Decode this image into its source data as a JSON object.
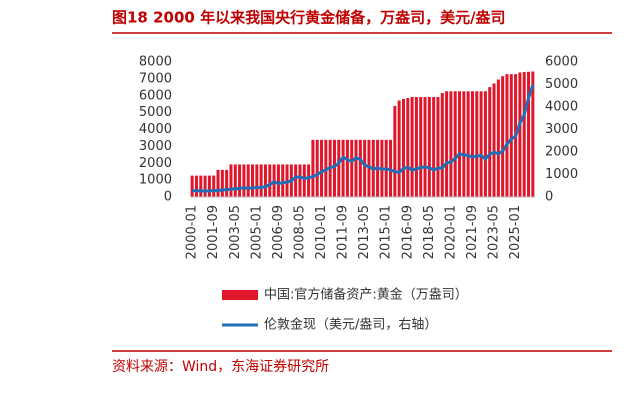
{
  "chart_data": {
    "type": "bar",
    "title": "图18  2000 年以来我国央行黄金储备，万盎司，美元/盎司",
    "source": "资料来源：Wind，东海证券研究所",
    "categories": [
      "2000-01",
      null,
      null,
      null,
      null,
      "2001-09",
      null,
      null,
      null,
      null,
      "2003-05",
      null,
      null,
      null,
      null,
      "2005-01",
      null,
      null,
      null,
      null,
      "2006-09",
      null,
      null,
      null,
      null,
      "2008-05",
      null,
      null,
      null,
      null,
      "2010-01",
      null,
      null,
      null,
      null,
      "2011-09",
      null,
      null,
      null,
      null,
      "2013-05",
      null,
      null,
      null,
      null,
      "2015-01",
      null,
      null,
      null,
      null,
      "2016-09",
      null,
      null,
      null,
      null,
      "2018-05",
      null,
      null,
      null,
      null,
      "2020-01",
      null,
      null,
      null,
      null,
      "2021-09",
      null,
      null,
      null,
      null,
      "2023-05",
      null,
      null,
      null,
      null,
      "2025-01",
      null,
      null,
      null,
      null
    ],
    "series": [
      {
        "name": "中国:官方储备资产:黄金（万盎司）",
        "type": "bar",
        "color": "#e0162b",
        "values": [
          1267,
          1267,
          1267,
          1267,
          1267,
          1267,
          1608,
          1608,
          1608,
          1929,
          1929,
          1929,
          1929,
          1929,
          1929,
          1929,
          1929,
          1929,
          1929,
          1929,
          1929,
          1929,
          1929,
          1929,
          1929,
          1929,
          1929,
          1929,
          3389,
          3389,
          3389,
          3389,
          3389,
          3389,
          3389,
          3389,
          3389,
          3389,
          3389,
          3389,
          3389,
          3389,
          3389,
          3389,
          3389,
          3389,
          3389,
          5395,
          5718,
          5814,
          5862,
          5924,
          5924,
          5924,
          5924,
          5924,
          5924,
          5924,
          6161,
          6264,
          6264,
          6264,
          6264,
          6264,
          6264,
          6264,
          6264,
          6264,
          6264,
          6512,
          6727,
          6962,
          7158,
          7280,
          7280,
          7280,
          7383,
          7406,
          7419,
          7438
        ]
      },
      {
        "name": "伦敦金现（美元/盎司，右轴）",
        "type": "line",
        "axis": "y2",
        "color": "#1f6fb8",
        "values": [
          285,
          275,
          273,
          266,
          272,
          283,
          282,
          315,
          320,
          356,
          355,
          378,
          414,
          385,
          404,
          425,
          430,
          456,
          549,
          676,
          598,
          631,
          667,
          712,
          889,
          889,
          829,
          858,
          902,
          996,
          1118,
          1205,
          1308,
          1356,
          1512,
          1772,
          1656,
          1586,
          1744,
          1670,
          1414,
          1349,
          1244,
          1288,
          1239,
          1251,
          1199,
          1125,
          1097,
          1260,
          1326,
          1192,
          1246,
          1315,
          1331,
          1303,
          1198,
          1291,
          1284,
          1511,
          1560,
          1715,
          1921,
          1866,
          1850,
          1775,
          1817,
          1849,
          1681,
          1898,
          1992,
          1916,
          2034,
          2350,
          2571,
          2709,
          3280,
          3667,
          4400,
          4980
        ]
      }
    ],
    "ylim": [
      0,
      8000
    ],
    "yticks": [
      0,
      1000,
      2000,
      3000,
      4000,
      5000,
      6000,
      7000,
      8000
    ],
    "y2lim": [
      0,
      6000
    ],
    "y2ticks": [
      0,
      1000,
      2000,
      3000,
      4000,
      5000,
      6000
    ]
  }
}
